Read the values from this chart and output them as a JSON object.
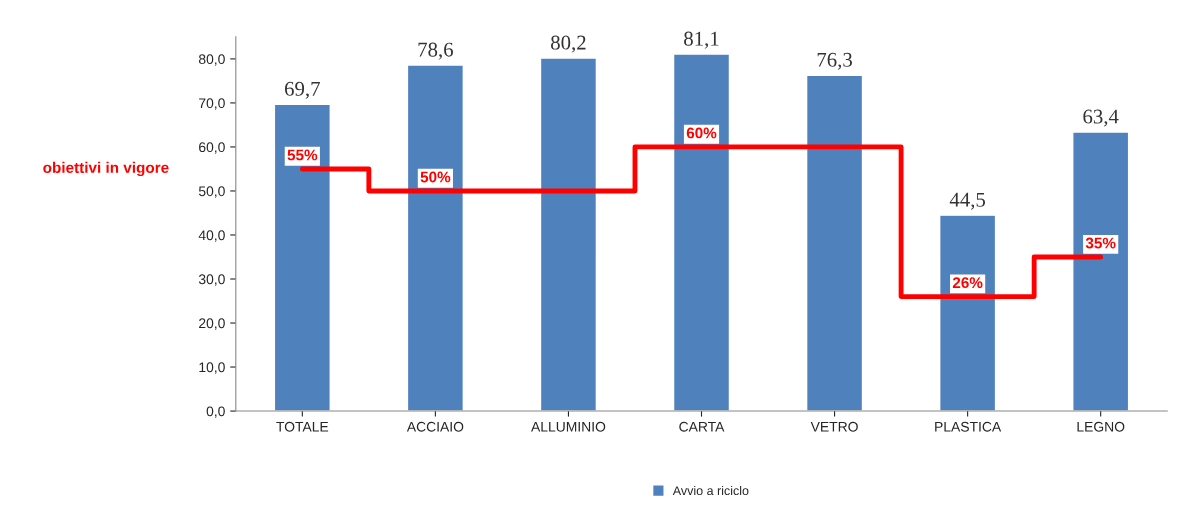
{
  "chart_data": {
    "type": "bar",
    "categories": [
      "TOTALE",
      "ACCIAIO",
      "ALLUMINIO",
      "CARTA",
      "VETRO",
      "PLASTICA",
      "LEGNO"
    ],
    "series": [
      {
        "name": "Avvio a riciclo",
        "color": "#4f81bd",
        "values": [
          69.7,
          78.6,
          80.2,
          81.1,
          76.3,
          44.5,
          63.4
        ],
        "value_labels": [
          "69,7",
          "78,6",
          "80,2",
          "81,1",
          "76,3",
          "44,5",
          "63,4"
        ]
      },
      {
        "name": "obiettivi in vigore",
        "type": "step",
        "color": "#ff0000",
        "values": [
          55,
          50,
          50,
          60,
          60,
          26,
          35
        ],
        "value_labels": [
          "55%",
          "50%",
          null,
          "60%",
          null,
          "26%",
          "35%"
        ]
      }
    ],
    "ylim": [
      0,
      85
    ],
    "yticks": [
      {
        "value": 0,
        "label": "0,0"
      },
      {
        "value": 10,
        "label": "10,0"
      },
      {
        "value": 20,
        "label": "20,0"
      },
      {
        "value": 30,
        "label": "30,0"
      },
      {
        "value": 40,
        "label": "40,0"
      },
      {
        "value": 50,
        "label": "50,0"
      },
      {
        "value": 60,
        "label": "60,0"
      },
      {
        "value": 70,
        "label": "70,0"
      },
      {
        "value": 80,
        "label": "80,0"
      }
    ],
    "grid": false,
    "legend": "bottom"
  }
}
